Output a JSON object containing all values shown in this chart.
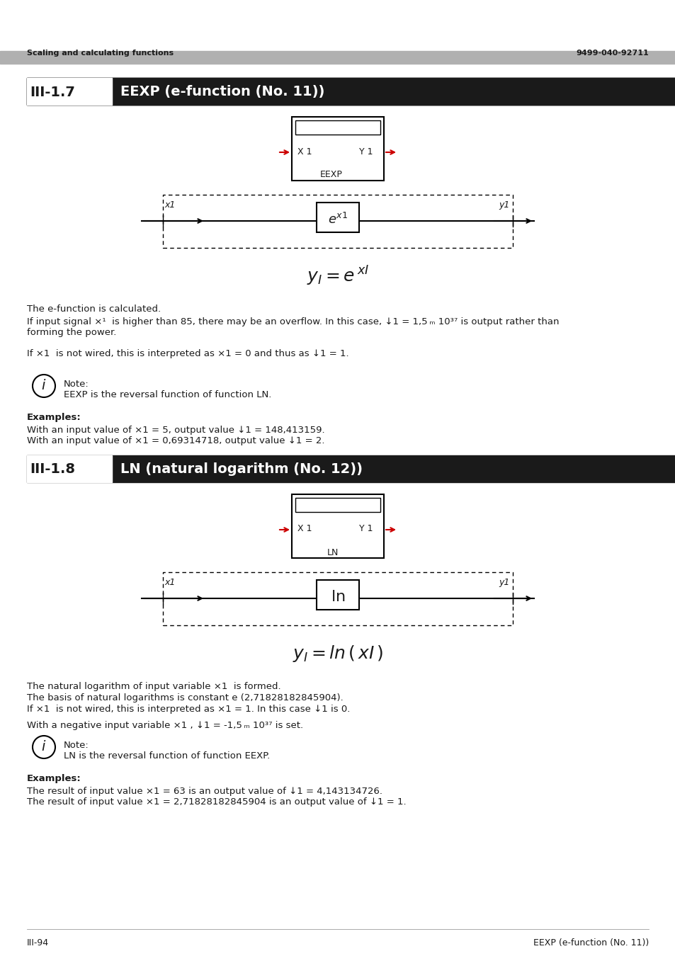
{
  "page_title_left": "Scaling and calculating functions",
  "page_title_right": "9499-040-92711",
  "section1_num": "III-1.7",
  "section1_title": "EEXP (e-function (No. 11))",
  "section2_num": "III-1.8",
  "section2_title": "LN (natural logarithm (No. 12))",
  "footer_left": "III-94",
  "footer_right": "EEXP (e-function (No. 11))",
  "header_bar_color": "#b0b0b0",
  "section_bar_color": "#1a1a1a",
  "section_num_color": "#1a1a1a",
  "section_title_bg": "#1a1a1a",
  "section_title_fg": "#ffffff",
  "arrow_color": "#cc0000",
  "text_color": "#1a1a1a",
  "eexp_text1": "The e-function is calculated.",
  "eexp_text2": "If input signal ×1  is higher than 85, there may be an overflow. In this case, ↓1 = 1,5 ₘ 10³⁷ is output rather than\nforming the power.",
  "eexp_text3": "If ×1  is not wired, this is interpreted as ×1 = 0 and thus as ↓1 = 1.",
  "eexp_note": "Note:\nEEXP is the reversal function of function LN.",
  "eexp_examples_title": "Examples:",
  "eexp_ex1": "With an input value of ×1 = 5, output value ↓1 = 148,413159.",
  "eexp_ex2": "With an input value of ×1 = 0,69314718, output value ↓1 = 2.",
  "ln_text1": "The natural logarithm of input variable ×1  is formed.",
  "ln_text2": "The basis of natural logarithms is constant e (2,71828182845904).",
  "ln_text3": "If ×1  is not wired, this is interpreted as ×1 = 1. In this case ↓1 is 0.",
  "ln_text4": "With a negative input variable ×1 , ↓1 = -1,5 ₘ 10³⁷ is set.",
  "ln_note": "Note:\nLN is the reversal function of function EEXP.",
  "ln_examples_title": "Examples:",
  "ln_ex1": "The result of input value ×1 = 63 is an output value of ↓1 = 4,143134726.",
  "ln_ex2": "The result of input value ×1 = 2,71828182845904 is an output value of ↓1 = 1."
}
